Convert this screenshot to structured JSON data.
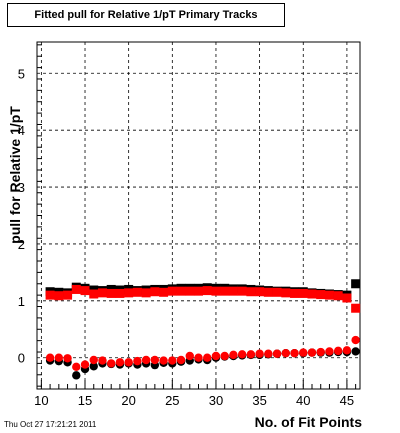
{
  "chart_data": {
    "type": "scatter",
    "title": "Fitted pull for Relative 1/pT Primary Tracks",
    "xlabel": "No. of Fit Points",
    "ylabel": "pull for Relative 1/pT",
    "xlim": [
      9.5,
      46.5
    ],
    "ylim": [
      -0.55,
      5.55
    ],
    "xticks": [
      10,
      15,
      20,
      25,
      30,
      35,
      40,
      45
    ],
    "yticks": [
      0,
      1,
      2,
      3,
      4,
      5
    ],
    "grid": true,
    "legend": "none",
    "x": [
      11,
      12,
      13,
      14,
      15,
      16,
      17,
      18,
      19,
      20,
      21,
      22,
      23,
      24,
      25,
      26,
      27,
      28,
      29,
      30,
      31,
      32,
      33,
      34,
      35,
      36,
      37,
      38,
      39,
      40,
      41,
      42,
      43,
      44,
      45,
      46
    ],
    "series": [
      {
        "marker": "square",
        "color": "#000000",
        "values": [
          1.16,
          1.15,
          1.14,
          1.24,
          1.22,
          1.19,
          1.18,
          1.2,
          1.19,
          1.2,
          1.18,
          1.19,
          1.2,
          1.2,
          1.21,
          1.22,
          1.22,
          1.22,
          1.23,
          1.22,
          1.22,
          1.21,
          1.21,
          1.2,
          1.19,
          1.18,
          1.17,
          1.17,
          1.16,
          1.16,
          1.14,
          1.13,
          1.12,
          1.11,
          1.1,
          1.3
        ]
      },
      {
        "marker": "square",
        "color": "#ff0000",
        "values": [
          1.1,
          1.09,
          1.1,
          1.2,
          1.18,
          1.12,
          1.14,
          1.13,
          1.13,
          1.14,
          1.15,
          1.14,
          1.16,
          1.15,
          1.17,
          1.17,
          1.17,
          1.17,
          1.18,
          1.17,
          1.17,
          1.17,
          1.17,
          1.16,
          1.16,
          1.15,
          1.15,
          1.14,
          1.13,
          1.13,
          1.12,
          1.11,
          1.1,
          1.09,
          1.05,
          0.87
        ]
      },
      {
        "marker": "circle",
        "color": "#000000",
        "values": [
          -0.05,
          -0.06,
          -0.08,
          -0.31,
          -0.2,
          -0.15,
          -0.1,
          -0.11,
          -0.12,
          -0.1,
          -0.12,
          -0.1,
          -0.13,
          -0.09,
          -0.1,
          -0.07,
          -0.05,
          -0.03,
          -0.04,
          0.0,
          0.02,
          0.03,
          0.04,
          0.05,
          0.05,
          0.06,
          0.07,
          0.08,
          0.08,
          0.08,
          0.09,
          0.09,
          0.09,
          0.1,
          0.1,
          0.11
        ]
      },
      {
        "marker": "circle",
        "color": "#ff0000",
        "values": [
          0.0,
          0.0,
          -0.01,
          -0.16,
          -0.12,
          -0.04,
          -0.05,
          -0.1,
          -0.08,
          -0.08,
          -0.06,
          -0.04,
          -0.04,
          -0.05,
          -0.05,
          -0.04,
          0.03,
          0.0,
          0.0,
          0.03,
          0.03,
          0.05,
          0.06,
          0.06,
          0.07,
          0.07,
          0.07,
          0.08,
          0.08,
          0.09,
          0.09,
          0.1,
          0.11,
          0.12,
          0.13,
          0.31
        ]
      }
    ]
  },
  "timestamp": "Thu Oct 27 17:21:21 2011"
}
